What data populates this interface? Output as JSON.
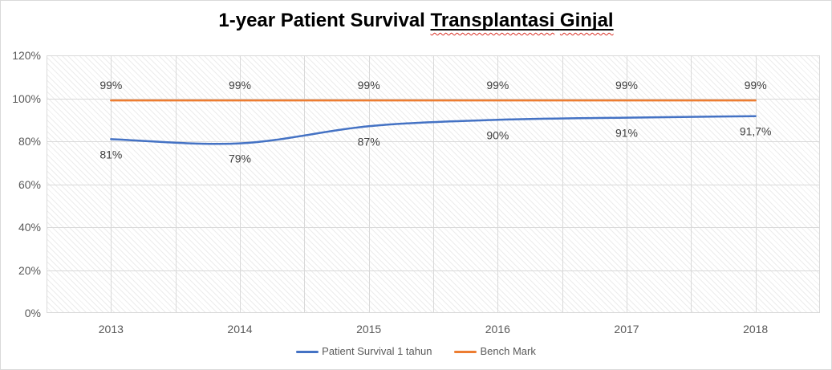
{
  "title": {
    "plain": "1-year Patient Survival ",
    "underlined_words": [
      "Transplantasi",
      "Ginjal"
    ]
  },
  "chart_data": {
    "type": "line",
    "title": "1-year Patient Survival Transplantasi Ginjal",
    "categories": [
      "2013",
      "2014",
      "2015",
      "2016",
      "2017",
      "2018"
    ],
    "series": [
      {
        "name": "Patient Survival 1 tahun",
        "values": [
          81,
          79,
          87,
          90,
          91,
          91.7
        ],
        "data_labels": [
          "81%",
          "79%",
          "87%",
          "90%",
          "91%",
          "91,7%"
        ],
        "color": "#4472C4",
        "smooth": true,
        "label_position": "below"
      },
      {
        "name": "Bench Mark",
        "values": [
          99,
          99,
          99,
          99,
          99,
          99
        ],
        "data_labels": [
          "99%",
          "99%",
          "99%",
          "99%",
          "99%",
          "99%"
        ],
        "color": "#ED7D31",
        "smooth": false,
        "label_position": "above"
      }
    ],
    "y_axis": {
      "min": 0,
      "max": 120,
      "step": 20,
      "tick_labels": [
        "0%",
        "20%",
        "40%",
        "60%",
        "80%",
        "100%",
        "120%"
      ]
    },
    "x_axis_ticks_between_categories": true,
    "grid": true,
    "legend_position": "bottom"
  },
  "colors": {
    "series_survival": "#4472C4",
    "series_benchmark": "#ED7D31",
    "gridline": "#D9D9D9",
    "axis_text": "#595959",
    "data_label_text": "#404040",
    "title_text": "#000000",
    "spellcheck_red": "#D93025",
    "border": "#D9D9D9",
    "background": "#FFFFFF"
  }
}
